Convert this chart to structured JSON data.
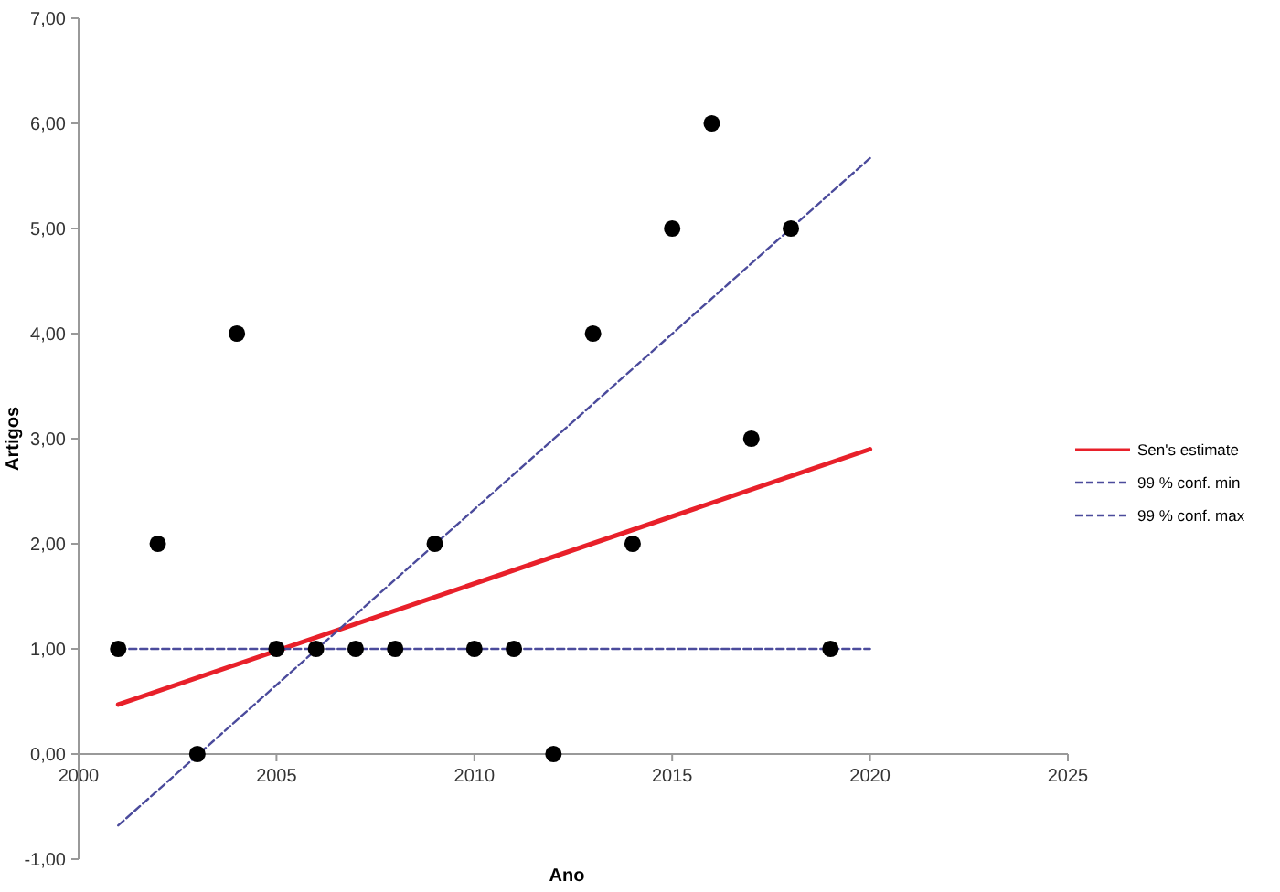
{
  "chart_data": {
    "type": "scatter",
    "xlabel": "Ano",
    "ylabel": "Artigos",
    "xlim": [
      2000,
      2025
    ],
    "xticks": [
      2000,
      2005,
      2010,
      2015,
      2020,
      2025
    ],
    "ylim": [
      -1,
      7
    ],
    "yticks": [
      {
        "value": -1,
        "label": "-1,00"
      },
      {
        "value": 0,
        "label": "0,00"
      },
      {
        "value": 1,
        "label": "1,00"
      },
      {
        "value": 2,
        "label": "2,00"
      },
      {
        "value": 3,
        "label": "3,00"
      },
      {
        "value": 4,
        "label": "4,00"
      },
      {
        "value": 5,
        "label": "5,00"
      },
      {
        "value": 6,
        "label": "6,00"
      },
      {
        "value": 7,
        "label": "7,00"
      }
    ],
    "grid": false,
    "legend": "right",
    "series": [
      {
        "color": "#000000",
        "marker": "circle",
        "x": [
          2001,
          2002,
          2003,
          2004,
          2005,
          2006,
          2007,
          2008,
          2009,
          2010,
          2011,
          2012,
          2013,
          2014,
          2015,
          2016,
          2017,
          2018,
          2019
        ],
        "values": [
          1,
          2,
          0,
          4,
          1,
          1,
          1,
          1,
          2,
          1,
          1,
          0,
          4,
          2,
          5,
          6,
          3,
          5,
          1
        ]
      },
      {
        "type": "line",
        "name": "Sen's estimate",
        "color": "#e8202a",
        "line_style": "solid",
        "x": [
          2001,
          2020
        ],
        "values": [
          0.47,
          2.9
        ]
      },
      {
        "type": "line",
        "name": "99 % conf. min",
        "color": "#4b4b9c",
        "line_style": "dashed",
        "x": [
          2001,
          2020
        ],
        "values": [
          1,
          1
        ]
      },
      {
        "type": "line",
        "name": "99 % conf. max",
        "color": "#4b4b9c",
        "line_style": "dashed",
        "x": [
          2001,
          2020
        ],
        "values": [
          -0.68,
          5.67
        ]
      }
    ]
  }
}
